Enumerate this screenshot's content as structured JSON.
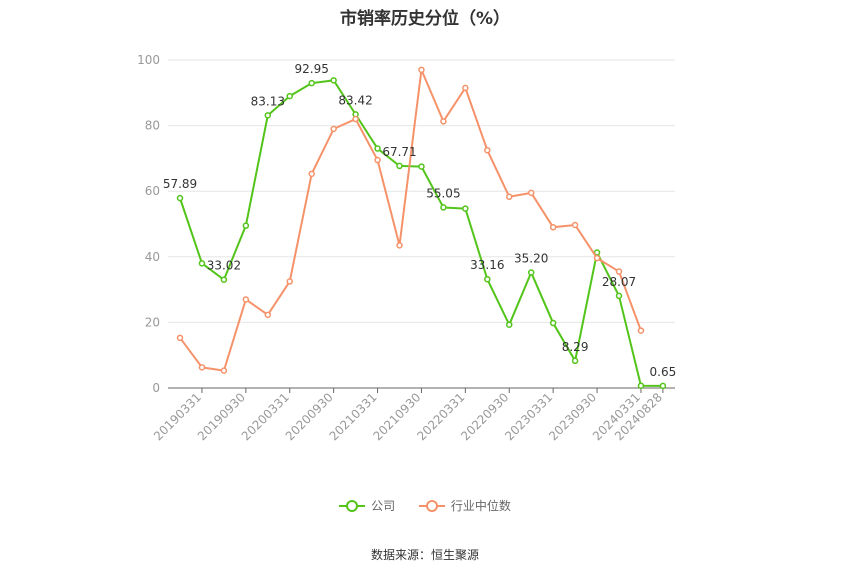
{
  "chart_data": {
    "type": "line",
    "title": "市销率历史分位（%）",
    "xlabel": "",
    "ylabel": "",
    "ylim": [
      0,
      100
    ],
    "yticks": [
      "0",
      "20",
      "40",
      "60",
      "80",
      "100"
    ],
    "xtick_labels": [
      "20190331",
      "20190930",
      "20200331",
      "20200930",
      "20210331",
      "20210930",
      "20220331",
      "20220930",
      "20230331",
      "20230930",
      "20240331",
      "20240828"
    ],
    "grid": true,
    "legend_position": "bottom",
    "series": [
      {
        "name": "公司",
        "color": "#52c41a",
        "values": [
          57.89,
          38.0,
          33.02,
          49.5,
          83.13,
          89.0,
          92.95,
          93.8,
          83.42,
          73.0,
          67.71,
          67.5,
          55.05,
          54.7,
          33.16,
          19.3,
          35.2,
          19.8,
          8.29,
          41.3,
          28.07,
          0.7,
          0.65
        ],
        "labels": [
          "57.89",
          "",
          "33.02",
          "",
          "83.13",
          "",
          "92.95",
          "",
          "83.42",
          "",
          "67.71",
          "",
          "55.05",
          "",
          "33.16",
          "",
          "35.20",
          "",
          "8.29",
          "",
          "28.07",
          "",
          "0.65"
        ]
      },
      {
        "name": "行业中位数",
        "color": "#f5926a",
        "values": [
          15.3,
          6.3,
          5.3,
          27.0,
          22.3,
          32.5,
          65.3,
          79.0,
          82.0,
          69.5,
          43.5,
          97.0,
          81.3,
          91.5,
          72.5,
          58.3,
          59.5,
          49.0,
          49.7,
          39.6,
          35.5,
          17.5
        ]
      }
    ]
  },
  "legend": {
    "items": [
      "公司",
      "行业中位数"
    ]
  },
  "source": "数据来源：恒生聚源"
}
